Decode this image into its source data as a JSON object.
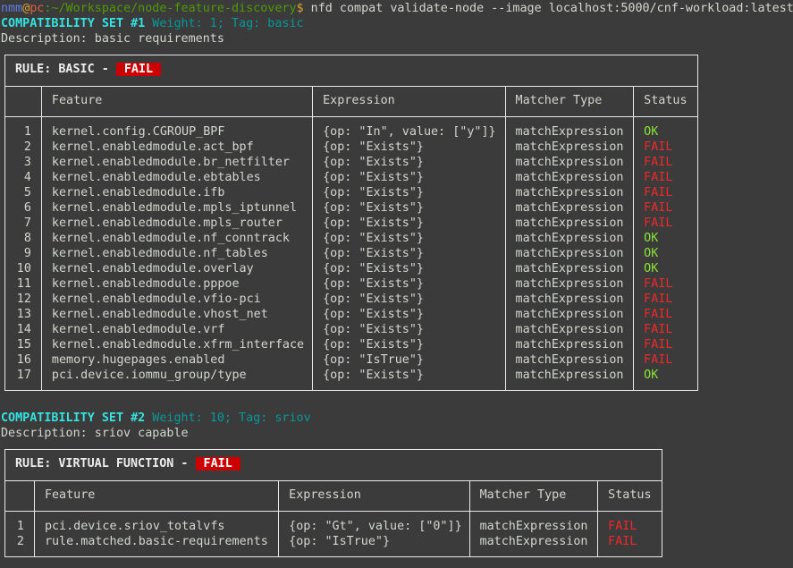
{
  "prompt": {
    "user": "nmm",
    "at": "@",
    "host": "pc",
    "path": ":~/Workspace/node-feature-discovery",
    "dollar": "$",
    "command": " nfd compat validate-node --image localhost:5000/cnf-workload:latest"
  },
  "columns": [
    "Feature",
    "Expression",
    "Matcher Type",
    "Status"
  ],
  "sets": [
    {
      "heading": "COMPATIBILITY SET #1",
      "meta": " Weight: 1; Tag: basic",
      "description": "Description: basic requirements",
      "rule": "RULE: BASIC - ",
      "result": "FAIL",
      "rows": [
        [
          "1",
          "kernel.config.CGROUP_BPF",
          "{op: \"In\", value: [\"y\"]}",
          "matchExpression",
          "OK"
        ],
        [
          "2",
          "kernel.enabledmodule.act_bpf",
          "{op: \"Exists\"}",
          "matchExpression",
          "FAIL"
        ],
        [
          "3",
          "kernel.enabledmodule.br_netfilter",
          "{op: \"Exists\"}",
          "matchExpression",
          "FAIL"
        ],
        [
          "4",
          "kernel.enabledmodule.ebtables",
          "{op: \"Exists\"}",
          "matchExpression",
          "FAIL"
        ],
        [
          "5",
          "kernel.enabledmodule.ifb",
          "{op: \"Exists\"}",
          "matchExpression",
          "FAIL"
        ],
        [
          "6",
          "kernel.enabledmodule.mpls_iptunnel",
          "{op: \"Exists\"}",
          "matchExpression",
          "FAIL"
        ],
        [
          "7",
          "kernel.enabledmodule.mpls_router",
          "{op: \"Exists\"}",
          "matchExpression",
          "FAIL"
        ],
        [
          "8",
          "kernel.enabledmodule.nf_conntrack",
          "{op: \"Exists\"}",
          "matchExpression",
          "OK"
        ],
        [
          "9",
          "kernel.enabledmodule.nf_tables",
          "{op: \"Exists\"}",
          "matchExpression",
          "OK"
        ],
        [
          "10",
          "kernel.enabledmodule.overlay",
          "{op: \"Exists\"}",
          "matchExpression",
          "OK"
        ],
        [
          "11",
          "kernel.enabledmodule.pppoe",
          "{op: \"Exists\"}",
          "matchExpression",
          "FAIL"
        ],
        [
          "12",
          "kernel.enabledmodule.vfio-pci",
          "{op: \"Exists\"}",
          "matchExpression",
          "FAIL"
        ],
        [
          "13",
          "kernel.enabledmodule.vhost_net",
          "{op: \"Exists\"}",
          "matchExpression",
          "FAIL"
        ],
        [
          "14",
          "kernel.enabledmodule.vrf",
          "{op: \"Exists\"}",
          "matchExpression",
          "FAIL"
        ],
        [
          "15",
          "kernel.enabledmodule.xfrm_interface",
          "{op: \"Exists\"}",
          "matchExpression",
          "FAIL"
        ],
        [
          "16",
          "memory.hugepages.enabled",
          "{op: \"IsTrue\"}",
          "matchExpression",
          "FAIL"
        ],
        [
          "17",
          "pci.device.iommu_group/type",
          "{op: \"Exists\"}",
          "matchExpression",
          "OK"
        ]
      ]
    },
    {
      "heading": "COMPATIBILITY SET #2",
      "meta": " Weight: 10; Tag: sriov",
      "description": "Description: sriov capable",
      "rule": "RULE: VIRTUAL FUNCTION - ",
      "result": "FAIL",
      "rows": [
        [
          "1",
          "pci.device.sriov_totalvfs",
          "{op: \"Gt\", value: [\"0\"]}",
          "matchExpression",
          "FAIL"
        ],
        [
          "2",
          "rule.matched.basic-requirements",
          "{op: \"IsTrue\"}",
          "matchExpression",
          "FAIL"
        ]
      ]
    }
  ]
}
